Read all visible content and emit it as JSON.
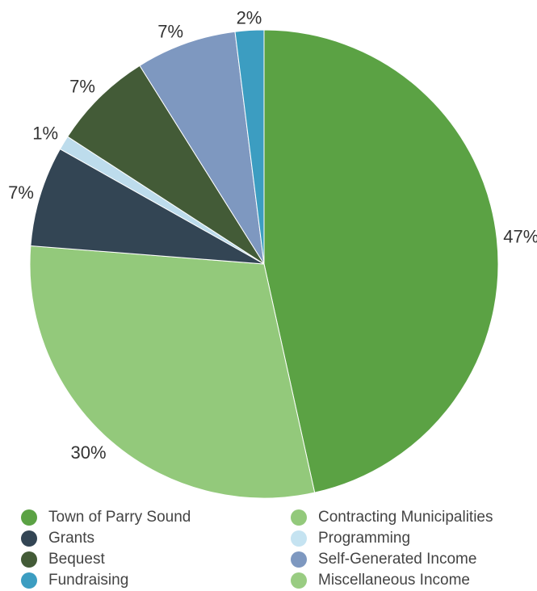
{
  "chart_data": {
    "type": "pie",
    "title": "",
    "start": "top",
    "direction": "clockwise",
    "slices": [
      {
        "label": "Town of Parry Sound",
        "value": 47,
        "value_label": "47%",
        "color": "#5ba244"
      },
      {
        "label": "Contracting Municipalities",
        "value": 30,
        "value_label": "30%",
        "color": "#93c97b"
      },
      {
        "label": "Grants",
        "value": 7,
        "value_label": "7%",
        "color": "#334554"
      },
      {
        "label": "Programming",
        "value": 1,
        "value_label": "1%",
        "color": "#bddcec"
      },
      {
        "label": "Bequest",
        "value": 7,
        "value_label": "7%",
        "color": "#435b37"
      },
      {
        "label": "Self-Generated Income",
        "value": 7,
        "value_label": "7%",
        "color": "#7e98c0"
      },
      {
        "label": "Fundraising",
        "value": 2,
        "value_label": "2%",
        "color": "#3c9dc1"
      },
      {
        "label": "Miscellaneous Income",
        "value": 0,
        "value_label": "",
        "color": "#99cc82"
      }
    ],
    "legend": {
      "position": "bottom",
      "columns": 2,
      "items": [
        {
          "label": "Town of Parry Sound",
          "color": "#5ba244"
        },
        {
          "label": "Contracting Municipalities",
          "color": "#93c97b"
        },
        {
          "label": "Grants",
          "color": "#334554"
        },
        {
          "label": "Programming",
          "color": "#c5e3f1"
        },
        {
          "label": "Bequest",
          "color": "#435b37"
        },
        {
          "label": "Self-Generated Income",
          "color": "#7e98c0"
        },
        {
          "label": "Fundraising",
          "color": "#3c9dc1"
        },
        {
          "label": "Miscellaneous Income",
          "color": "#99cc82"
        }
      ]
    }
  }
}
